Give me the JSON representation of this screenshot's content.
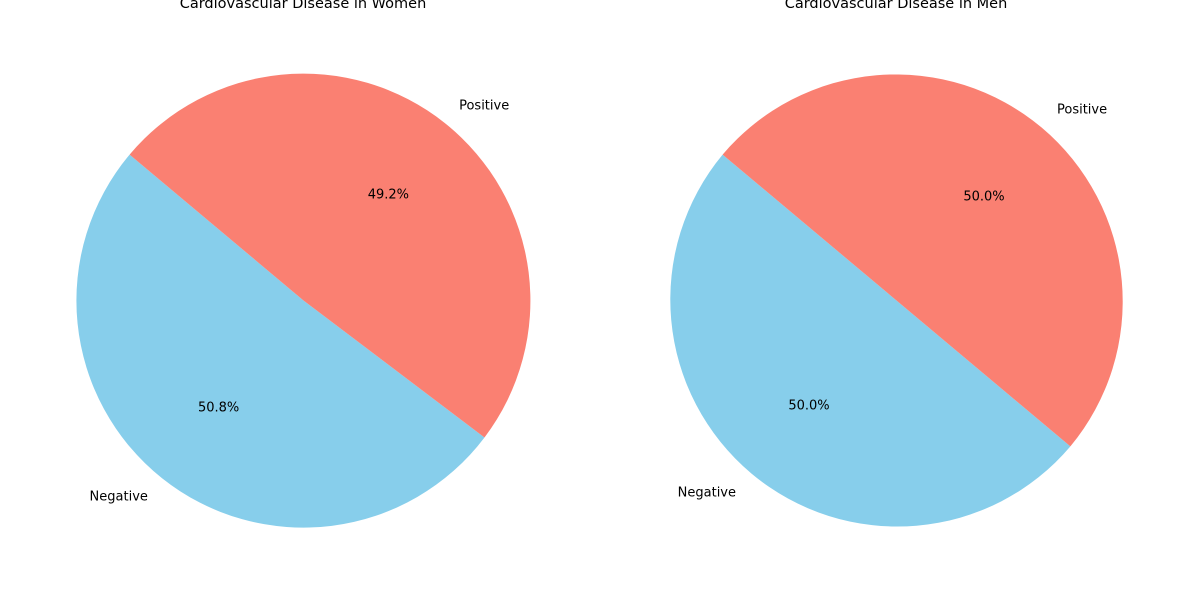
{
  "chart_data": [
    {
      "type": "pie",
      "title": "Cardiovascular Disease in Women",
      "categories": [
        "Negative",
        "Positive"
      ],
      "values": [
        50.8,
        49.2
      ],
      "value_labels": [
        "50.8%",
        "49.2%"
      ],
      "colors": [
        "#87CEEB",
        "#FA8072"
      ],
      "start_angle_deg": 140,
      "direction": "counterclockwise"
    },
    {
      "type": "pie",
      "title": "Cardiovascular Disease in Men",
      "categories": [
        "Negative",
        "Positive"
      ],
      "values": [
        50.0,
        50.0
      ],
      "value_labels": [
        "50.0%",
        "50.0%"
      ],
      "colors": [
        "#87CEEB",
        "#FA8072"
      ],
      "start_angle_deg": 140,
      "direction": "counterclockwise"
    }
  ]
}
